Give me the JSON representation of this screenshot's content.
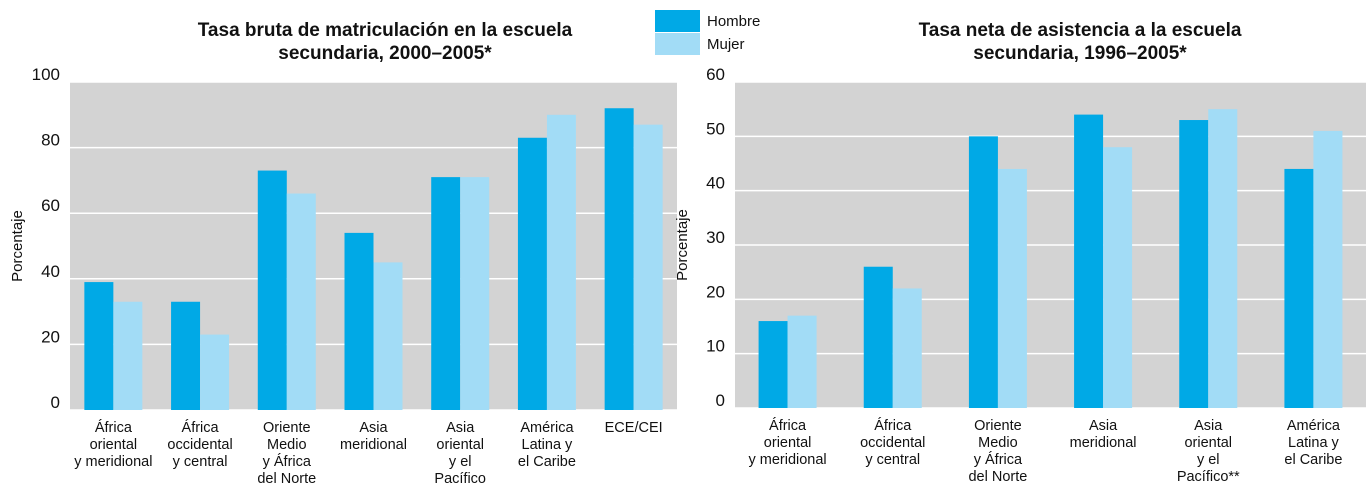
{
  "chart_data": [
    {
      "type": "bar",
      "title": "Tasa bruta de matriculación en la escuela\nsecundaria, 2000–2005*",
      "y_label": "Porcentaje",
      "categories": [
        "África\noriental\ny meridional",
        "África\noccidental\ny central",
        "Oriente\nMedio\ny África\ndel Norte",
        "Asia\nmeridional",
        "Asia\noriental\ny el\nPacífico",
        "América\nLatina y\nel Caribe",
        "ECE/CEI"
      ],
      "series": [
        {
          "name": "Hombre",
          "color": "#00a9e6",
          "values": [
            39,
            33,
            73,
            54,
            71,
            83,
            92
          ]
        },
        {
          "name": "Mujer",
          "color": "#a2dcf6",
          "values": [
            33,
            23,
            66,
            45,
            71,
            90,
            87
          ]
        }
      ],
      "ylim": [
        0,
        100
      ],
      "yticks": [
        0,
        20,
        40,
        60,
        80,
        100
      ],
      "grid": true
    },
    {
      "type": "bar",
      "title": "Tasa neta de asistencia a la escuela\nsecundaria, 1996–2005*",
      "y_label": "Porcentaje",
      "categories": [
        "África\noriental\ny meridional",
        "África\noccidental\ny central",
        "Oriente\nMedio\ny África\ndel Norte",
        "Asia\nmeridional",
        "Asia\noriental\ny el\nPacífico**",
        "América\nLatina y\nel Caribe"
      ],
      "series": [
        {
          "name": "Hombre",
          "color": "#00a9e6",
          "values": [
            16,
            26,
            50,
            54,
            53,
            44
          ]
        },
        {
          "name": "Mujer",
          "color": "#a2dcf6",
          "values": [
            17,
            22,
            44,
            48,
            55,
            51
          ]
        }
      ],
      "ylim": [
        0,
        60
      ],
      "yticks": [
        0,
        10,
        20,
        30,
        40,
        50,
        60
      ],
      "grid": true
    }
  ]
}
